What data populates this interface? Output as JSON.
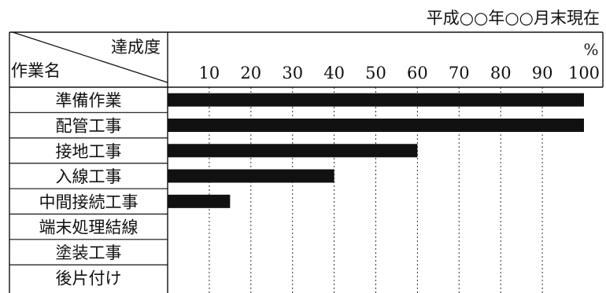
{
  "header": {
    "as_of": "平成○○年○○月末現在"
  },
  "table": {
    "header_top": "達成度",
    "header_bottom": "作業名",
    "percent_unit": "%"
  },
  "chart_data": {
    "type": "bar",
    "orientation": "horizontal",
    "xlim": [
      0,
      100
    ],
    "x_ticks": [
      "10",
      "20",
      "30",
      "40",
      "50",
      "60",
      "70",
      "80",
      "90",
      "100"
    ],
    "grid": "dotted vertical lines at each 10",
    "bar_color": "#111111",
    "categories": [
      "準備作業",
      "配管工事",
      "接地工事",
      "入線工事",
      "中間接続工事",
      "端末処理結線",
      "塗装工事",
      "後片付け"
    ],
    "values": [
      100,
      100,
      60,
      40,
      15,
      0,
      0,
      0
    ]
  }
}
